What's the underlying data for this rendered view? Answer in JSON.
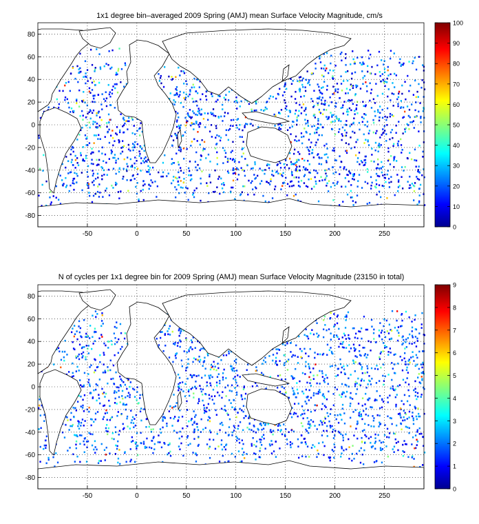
{
  "chart_data": [
    {
      "type": "heatmap",
      "title": "1x1 degree bin–averaged 2009 Spring (AMJ) mean Surface Velocity Magnitude, cm/s",
      "xlabel": "",
      "ylabel": "",
      "x_range": [
        -100,
        290
      ],
      "y_range": [
        -90,
        90
      ],
      "x_ticks": [
        -50,
        0,
        50,
        100,
        150,
        200,
        250
      ],
      "y_ticks": [
        -80,
        -60,
        -40,
        -20,
        0,
        20,
        40,
        60,
        80
      ],
      "grid": true,
      "colorbar": {
        "min": 0,
        "max": 100,
        "ticks": [
          0,
          10,
          20,
          30,
          40,
          50,
          60,
          70,
          80,
          90,
          100
        ],
        "colormap": "jet"
      },
      "typical_value_range": [
        5,
        40
      ]
    },
    {
      "type": "heatmap",
      "title": "N of cycles per 1x1 degree bin for 2009 Spring (AMJ) mean Surface Velocity Magnitude (23150 in total)",
      "xlabel": "",
      "ylabel": "",
      "x_range": [
        -100,
        290
      ],
      "y_range": [
        -90,
        90
      ],
      "x_ticks": [
        -50,
        0,
        50,
        100,
        150,
        200,
        250
      ],
      "y_ticks": [
        -80,
        -60,
        -40,
        -20,
        0,
        20,
        40,
        60,
        80
      ],
      "grid": true,
      "colorbar": {
        "min": 0,
        "max": 9,
        "ticks": [
          0,
          1,
          2,
          3,
          4,
          5,
          6,
          7,
          8,
          9
        ],
        "colormap": "jet"
      },
      "total_cycles": 23150
    }
  ]
}
